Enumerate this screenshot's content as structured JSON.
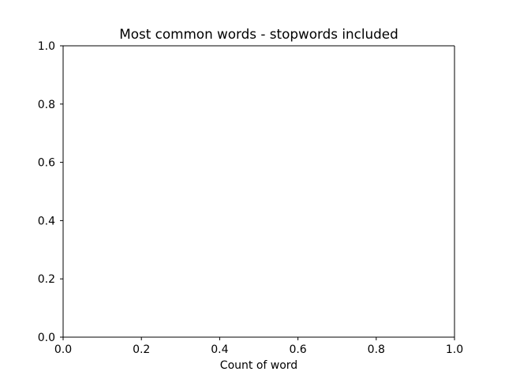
{
  "chart_data": {
    "type": "bar",
    "orientation": "horizontal",
    "title": "Most common words - stopwords included",
    "xlabel": "Count of word",
    "ylabel": "",
    "xlim": [
      0.0,
      1.0
    ],
    "ylim": [
      0.0,
      1.0
    ],
    "x_ticks": [
      "0.0",
      "0.2",
      "0.4",
      "0.6",
      "0.8",
      "1.0"
    ],
    "y_ticks": [
      "0.0",
      "0.2",
      "0.4",
      "0.6",
      "0.8",
      "1.0"
    ],
    "categories": [],
    "values": [],
    "grid": false,
    "legend": "none"
  }
}
